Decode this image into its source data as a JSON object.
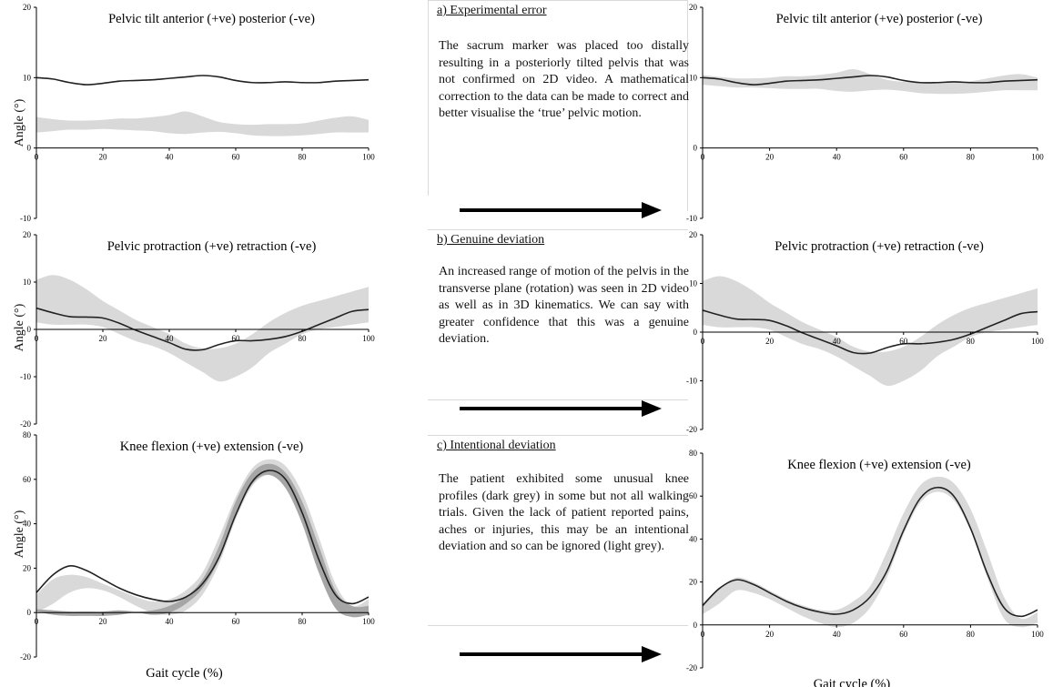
{
  "ylabel_common": "Angle  (°)",
  "xlabel_common": "Gait cycle (%)",
  "chart_data": [
    {
      "type": "line",
      "id": "left-pelvic-tilt",
      "title": "Pelvic tilt anterior  (+ve) posterior  (-ve)",
      "ylabel": "Angle  (°)",
      "xlabel": "",
      "xlim": [
        0,
        100
      ],
      "ylim": [
        -10,
        20
      ],
      "xticks": [
        0,
        20,
        40,
        60,
        80,
        100
      ],
      "yticks": [
        -10,
        0,
        10,
        20
      ],
      "series": [
        {
          "kind": "band",
          "color": "#d9d9d9",
          "x": [
            0,
            5,
            10,
            15,
            20,
            25,
            30,
            35,
            40,
            45,
            50,
            55,
            60,
            65,
            70,
            75,
            80,
            85,
            90,
            95,
            100
          ],
          "lower": [
            2.2,
            2.4,
            2.6,
            2.6,
            2.7,
            2.6,
            2.5,
            2.4,
            2.1,
            2.0,
            2.2,
            2.3,
            2.1,
            1.8,
            1.7,
            1.7,
            1.8,
            2.0,
            2.2,
            2.2,
            2.2
          ],
          "upper": [
            4.4,
            4.1,
            3.9,
            3.9,
            4.0,
            4.2,
            4.2,
            4.4,
            4.7,
            5.2,
            4.5,
            3.7,
            3.4,
            3.3,
            3.4,
            3.4,
            3.5,
            3.9,
            4.3,
            4.5,
            4.0
          ]
        },
        {
          "kind": "line",
          "color": "#222222",
          "x": [
            0,
            5,
            10,
            15,
            20,
            25,
            30,
            35,
            40,
            45,
            50,
            55,
            60,
            65,
            70,
            75,
            80,
            85,
            90,
            95,
            100
          ],
          "y": [
            10.0,
            9.8,
            9.3,
            9.0,
            9.2,
            9.5,
            9.6,
            9.7,
            9.9,
            10.1,
            10.3,
            10.1,
            9.6,
            9.3,
            9.3,
            9.4,
            9.3,
            9.3,
            9.5,
            9.6,
            9.7
          ]
        }
      ]
    },
    {
      "type": "line",
      "id": "left-pelvic-protraction",
      "title": "Pelvic  protraction  (+ve) retraction  (-ve)",
      "ylabel": "Angle  (°)",
      "xlabel": "",
      "xlim": [
        0,
        100
      ],
      "ylim": [
        -20,
        20
      ],
      "xticks": [
        0,
        20,
        40,
        60,
        80,
        100
      ],
      "yticks": [
        -20,
        -10,
        0,
        10,
        20
      ],
      "series": [
        {
          "kind": "band",
          "color": "#d9d9d9",
          "x": [
            0,
            5,
            10,
            15,
            20,
            25,
            30,
            35,
            40,
            45,
            50,
            55,
            60,
            65,
            70,
            75,
            80,
            85,
            90,
            95,
            100
          ],
          "lower": [
            1.5,
            1.0,
            1.0,
            1.0,
            0.5,
            -1.0,
            -2.5,
            -3.5,
            -5.0,
            -7.0,
            -9.0,
            -11.0,
            -10.0,
            -8.0,
            -5.0,
            -3.0,
            -1.0,
            0.0,
            0.5,
            1.0,
            1.5
          ],
          "upper": [
            10.5,
            11.5,
            10.5,
            8.5,
            6.0,
            4.0,
            2.0,
            0.5,
            -1.0,
            -3.0,
            -4.0,
            -4.0,
            -3.0,
            -1.0,
            1.5,
            3.5,
            5.0,
            6.0,
            7.0,
            8.0,
            9.0
          ]
        },
        {
          "kind": "line",
          "color": "#222222",
          "x": [
            0,
            5,
            10,
            15,
            20,
            25,
            30,
            35,
            40,
            45,
            50,
            55,
            60,
            65,
            70,
            75,
            80,
            85,
            90,
            95,
            100
          ],
          "y": [
            4.5,
            3.5,
            2.7,
            2.6,
            2.4,
            1.3,
            -0.2,
            -1.5,
            -2.8,
            -4.2,
            -4.3,
            -3.2,
            -2.4,
            -2.4,
            -2.1,
            -1.5,
            -0.4,
            1.0,
            2.4,
            3.8,
            4.2
          ]
        }
      ]
    },
    {
      "type": "line",
      "id": "left-knee-flexion",
      "title": "Knee  flexion  (+ve) extension  (-ve)",
      "ylabel": "Angle  (°)",
      "xlabel": "Gait cycle (%)",
      "xlim": [
        0,
        100
      ],
      "ylim": [
        -20,
        80
      ],
      "xticks": [
        0,
        20,
        40,
        60,
        80,
        100
      ],
      "yticks": [
        -20,
        0,
        20,
        40,
        60,
        80
      ],
      "series": [
        {
          "kind": "band",
          "color": "#d9d9d9",
          "x": [
            0,
            5,
            10,
            15,
            20,
            25,
            30,
            35,
            40,
            45,
            50,
            55,
            60,
            65,
            70,
            75,
            80,
            85,
            90,
            95,
            100
          ],
          "lower": [
            0,
            4,
            9,
            11,
            10,
            7,
            3,
            0,
            -1,
            1,
            8,
            22,
            42,
            57,
            62,
            58,
            44,
            22,
            3,
            -1,
            1
          ],
          "upper": [
            8,
            15,
            17,
            16,
            13,
            10,
            7,
            5,
            6,
            10,
            18,
            34,
            52,
            65,
            69,
            66,
            54,
            34,
            13,
            3,
            6
          ]
        },
        {
          "kind": "band",
          "color": "#a6a6a6",
          "x": [
            0,
            5,
            10,
            15,
            20,
            25,
            30,
            35,
            40,
            45,
            50,
            55,
            60,
            65,
            70,
            75,
            80,
            85,
            90,
            95,
            100
          ],
          "lower": [
            0.5,
            -1.0,
            -1.5,
            -1.5,
            -1.5,
            -1.0,
            0.0,
            -1.0,
            0.0,
            4.0,
            11.0,
            24.0,
            44.0,
            58.0,
            62.0,
            56.0,
            40.0,
            18.0,
            2.0,
            -2.0,
            -1.0
          ],
          "upper": [
            1.5,
            1.0,
            0.5,
            0.5,
            0.5,
            1.0,
            0.5,
            1.0,
            3.0,
            7.0,
            15.0,
            30.0,
            50.0,
            63.0,
            67.0,
            63.0,
            50.0,
            30.0,
            10.0,
            3.0,
            3.0
          ]
        },
        {
          "kind": "line",
          "color": "#222222",
          "x": [
            0,
            5,
            10,
            15,
            20,
            25,
            30,
            35,
            40,
            45,
            50,
            55,
            60,
            65,
            70,
            75,
            80,
            85,
            90,
            95,
            100
          ],
          "y": [
            9,
            17,
            21,
            19,
            15,
            11,
            8,
            6,
            5,
            7,
            13,
            25,
            44,
            59,
            64,
            60,
            45,
            24,
            8,
            4,
            7
          ]
        }
      ]
    },
    {
      "type": "line",
      "id": "right-pelvic-tilt",
      "title": "Pelvic tilt anterior  (+ve) posterior  (-ve)",
      "ylabel": "",
      "xlabel": "",
      "xlim": [
        0,
        100
      ],
      "ylim": [
        -10,
        20
      ],
      "xticks": [
        0,
        20,
        40,
        60,
        80,
        100
      ],
      "yticks": [
        -10,
        0,
        10,
        20
      ],
      "series": [
        {
          "kind": "band",
          "color": "#d9d9d9",
          "x": [
            0,
            5,
            10,
            15,
            20,
            25,
            30,
            35,
            40,
            45,
            50,
            55,
            60,
            65,
            70,
            75,
            80,
            85,
            90,
            95,
            100
          ],
          "lower": [
            9.0,
            8.8,
            8.6,
            8.6,
            8.5,
            8.4,
            8.4,
            8.4,
            8.1,
            8.0,
            8.2,
            8.3,
            8.1,
            7.8,
            7.7,
            7.7,
            7.8,
            8.0,
            8.2,
            8.2,
            8.2
          ],
          "upper": [
            10.4,
            10.1,
            9.9,
            9.9,
            10.0,
            10.2,
            10.2,
            10.4,
            10.7,
            11.2,
            10.5,
            9.7,
            9.4,
            9.3,
            9.4,
            9.4,
            9.5,
            9.9,
            10.3,
            10.5,
            10.0
          ]
        },
        {
          "kind": "line",
          "color": "#222222",
          "x": [
            0,
            5,
            10,
            15,
            20,
            25,
            30,
            35,
            40,
            45,
            50,
            55,
            60,
            65,
            70,
            75,
            80,
            85,
            90,
            95,
            100
          ],
          "y": [
            10.0,
            9.8,
            9.3,
            9.0,
            9.2,
            9.5,
            9.6,
            9.7,
            9.9,
            10.1,
            10.3,
            10.1,
            9.6,
            9.3,
            9.3,
            9.4,
            9.3,
            9.3,
            9.5,
            9.6,
            9.7
          ]
        }
      ]
    },
    {
      "type": "line",
      "id": "right-pelvic-protraction",
      "title": "Pelvic  protraction  (+ve) retraction  (-ve)",
      "ylabel": "",
      "xlabel": "",
      "xlim": [
        0,
        100
      ],
      "ylim": [
        -20,
        20
      ],
      "xticks": [
        0,
        20,
        40,
        60,
        80,
        100
      ],
      "yticks": [
        -20,
        -10,
        0,
        10,
        20
      ],
      "series": [
        {
          "kind": "band",
          "color": "#d9d9d9",
          "x": [
            0,
            5,
            10,
            15,
            20,
            25,
            30,
            35,
            40,
            45,
            50,
            55,
            60,
            65,
            70,
            75,
            80,
            85,
            90,
            95,
            100
          ],
          "lower": [
            1.5,
            1.0,
            1.0,
            1.0,
            0.5,
            -1.0,
            -2.5,
            -3.5,
            -5.0,
            -7.0,
            -9.0,
            -11.0,
            -10.0,
            -8.0,
            -5.0,
            -3.0,
            -1.0,
            0.0,
            0.5,
            1.0,
            1.5
          ],
          "upper": [
            10.5,
            11.5,
            10.5,
            8.5,
            6.0,
            4.0,
            2.0,
            0.5,
            -1.0,
            -3.0,
            -4.0,
            -4.0,
            -3.0,
            -1.0,
            1.5,
            3.5,
            5.0,
            6.0,
            7.0,
            8.0,
            9.0
          ]
        },
        {
          "kind": "line",
          "color": "#222222",
          "x": [
            0,
            5,
            10,
            15,
            20,
            25,
            30,
            35,
            40,
            45,
            50,
            55,
            60,
            65,
            70,
            75,
            80,
            85,
            90,
            95,
            100
          ],
          "y": [
            4.5,
            3.5,
            2.7,
            2.6,
            2.4,
            1.3,
            -0.2,
            -1.5,
            -2.8,
            -4.2,
            -4.3,
            -3.2,
            -2.4,
            -2.4,
            -2.1,
            -1.5,
            -0.4,
            1.0,
            2.4,
            3.8,
            4.2
          ]
        }
      ]
    },
    {
      "type": "line",
      "id": "right-knee-flexion",
      "title": "Knee  flexion  (+ve) extension  (-ve)",
      "ylabel": "",
      "xlabel": "Gait cycle (%)",
      "xlim": [
        0,
        100
      ],
      "ylim": [
        -20,
        80
      ],
      "xticks": [
        0,
        20,
        40,
        60,
        80,
        100
      ],
      "yticks": [
        -20,
        0,
        20,
        40,
        60,
        80
      ],
      "series": [
        {
          "kind": "band",
          "color": "#d9d9d9",
          "x": [
            0,
            5,
            10,
            15,
            20,
            25,
            30,
            35,
            40,
            45,
            50,
            55,
            60,
            65,
            70,
            75,
            80,
            85,
            90,
            95,
            100
          ],
          "lower": [
            5,
            10,
            16,
            15,
            12,
            8,
            4,
            1,
            -1,
            1,
            8,
            22,
            42,
            57,
            62,
            58,
            44,
            22,
            3,
            -1,
            1
          ],
          "upper": [
            10,
            17,
            22,
            20,
            16,
            12,
            9,
            7,
            7,
            11,
            18,
            34,
            52,
            65,
            69,
            66,
            54,
            34,
            13,
            3,
            6
          ]
        },
        {
          "kind": "line",
          "color": "#222222",
          "x": [
            0,
            5,
            10,
            15,
            20,
            25,
            30,
            35,
            40,
            45,
            50,
            55,
            60,
            65,
            70,
            75,
            80,
            85,
            90,
            95,
            100
          ],
          "y": [
            9,
            17,
            21,
            19,
            15,
            11,
            8,
            6,
            5,
            7,
            13,
            25,
            44,
            59,
            64,
            60,
            45,
            24,
            8,
            4,
            7
          ]
        }
      ]
    }
  ],
  "text_panels": [
    {
      "id": "a",
      "heading": "a) Experimental  error",
      "body": "The sacrum marker was placed too distally resulting in a posteriorly tilted pelvis that was not confirmed on 2D video. A mathematical correction to the data can be made to correct and better visualise the ‘true’ pelvic motion."
    },
    {
      "id": "b",
      "heading": "b) Genuine  deviation",
      "body": "An increased range of motion of the pelvis in the transverse plane (rotation) was seen in 2D video as well as in 3D kinematics. We can say with greater confidence that this was a genuine  deviation."
    },
    {
      "id": "c",
      "heading": "c) Intentional  deviation",
      "body": "The patient exhibited some unusual knee profiles (dark grey) in some but not all walking trials. Given the lack of patient reported pains, aches or injuries, this may be an intentional deviation and so can be ignored (light grey)."
    }
  ]
}
